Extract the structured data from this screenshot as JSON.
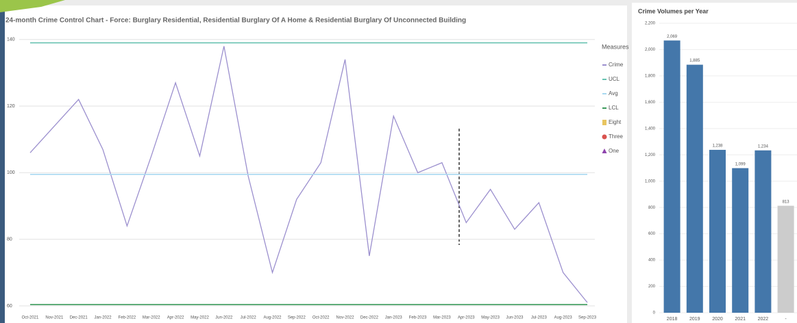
{
  "chart_data": [
    {
      "type": "line",
      "title": "24-month Crime Control Chart - Force: Burglary Residential, Residential Burglary Of A Home & Residential Burglary Of Unconnected Building",
      "legend_title": "Measures",
      "categories": [
        "Oct-2021",
        "Nov-2021",
        "Dec-2021",
        "Jan-2022",
        "Feb-2022",
        "Mar-2022",
        "Apr-2022",
        "May-2022",
        "Jun-2022",
        "Jul-2022",
        "Aug-2022",
        "Sep-2022",
        "Oct-2022",
        "Nov-2022",
        "Dec-2022",
        "Jan-2023",
        "Feb-2023",
        "Mar-2023",
        "Apr-2023",
        "May-2023",
        "Jun-2023",
        "Jul-2023",
        "Aug-2023",
        "Sep-2023"
      ],
      "series": [
        {
          "name": "Crime",
          "color": "#9b8fce",
          "marker": "line",
          "values": [
            106,
            114,
            122,
            107,
            84,
            105,
            127,
            105,
            138,
            99,
            70,
            92,
            103,
            134,
            75,
            117,
            100,
            103,
            85,
            95,
            83,
            91,
            70,
            61
          ]
        },
        {
          "name": "UCL",
          "color": "#66c2b0",
          "marker": "line",
          "values": [
            139,
            139,
            139,
            139,
            139,
            139,
            139,
            139,
            139,
            139,
            139,
            139,
            139,
            139,
            139,
            139,
            139,
            139,
            139,
            139,
            139,
            139,
            139,
            139
          ]
        },
        {
          "name": "Avg",
          "color": "#a8d8f0",
          "marker": "line",
          "values": [
            99.5,
            99.5,
            99.5,
            99.5,
            99.5,
            99.5,
            99.5,
            99.5,
            99.5,
            99.5,
            99.5,
            99.5,
            99.5,
            99.5,
            99.5,
            99.5,
            99.5,
            99.5,
            99.5,
            99.5,
            99.5,
            99.5,
            99.5,
            99.5
          ]
        },
        {
          "name": "LCL",
          "color": "#3a9a5a",
          "marker": "line",
          "values": [
            60.4,
            60.4,
            60.4,
            60.4,
            60.4,
            60.4,
            60.4,
            60.4,
            60.4,
            60.4,
            60.4,
            60.4,
            60.4,
            60.4,
            60.4,
            60.4,
            60.4,
            60.4,
            60.4,
            60.4,
            60.4,
            60.4,
            60.4,
            60.4
          ]
        },
        {
          "name": "Eight",
          "color": "#e8c560",
          "marker": "square",
          "values": [
            null,
            null,
            null,
            null,
            null,
            null,
            null,
            null,
            null,
            null,
            null,
            null,
            null,
            null,
            null,
            null,
            null,
            null,
            null,
            null,
            null,
            null,
            null,
            null
          ]
        },
        {
          "name": "Three",
          "color": "#d9534f",
          "marker": "circle",
          "values": [
            null,
            null,
            null,
            null,
            null,
            null,
            null,
            null,
            null,
            null,
            null,
            null,
            null,
            null,
            null,
            null,
            null,
            null,
            null,
            null,
            null,
            null,
            null,
            null
          ]
        },
        {
          "name": "One",
          "color": "#8e44ad",
          "marker": "triangle",
          "values": [
            null,
            null,
            null,
            null,
            null,
            null,
            null,
            null,
            null,
            null,
            null,
            null,
            null,
            null,
            null,
            null,
            null,
            null,
            null,
            null,
            null,
            null,
            null,
            null
          ]
        }
      ],
      "ylim": [
        60,
        142
      ],
      "yticks": [
        60,
        80,
        100,
        120,
        140
      ],
      "grid": true
    },
    {
      "type": "bar",
      "title": "Crime Volumes per Year",
      "categories": [
        "2018",
        "2019",
        "2020",
        "2021",
        "2022",
        "-"
      ],
      "values": [
        2069,
        1885,
        1238,
        1099,
        1234,
        813
      ],
      "value_labels": [
        "2,069",
        "1,885",
        "1,238",
        "1,099",
        "1,234",
        "813"
      ],
      "colors": [
        "#4477aa",
        "#4477aa",
        "#4477aa",
        "#4477aa",
        "#4477aa",
        "#cccccc"
      ],
      "ylim": [
        0,
        2200
      ],
      "yticks": [
        0,
        200,
        400,
        600,
        800,
        {
          "value": 1000,
          "label": "1,000"
        },
        {
          "value": 1200,
          "label": "1,200"
        },
        {
          "value": 1400,
          "label": "1,400"
        },
        {
          "value": 1600,
          "label": "1,600"
        },
        {
          "value": 1800,
          "label": "1,800"
        },
        {
          "value": 2000,
          "label": "2,000"
        },
        {
          "value": 2200,
          "label": "2,200"
        }
      ],
      "grid": true
    }
  ]
}
